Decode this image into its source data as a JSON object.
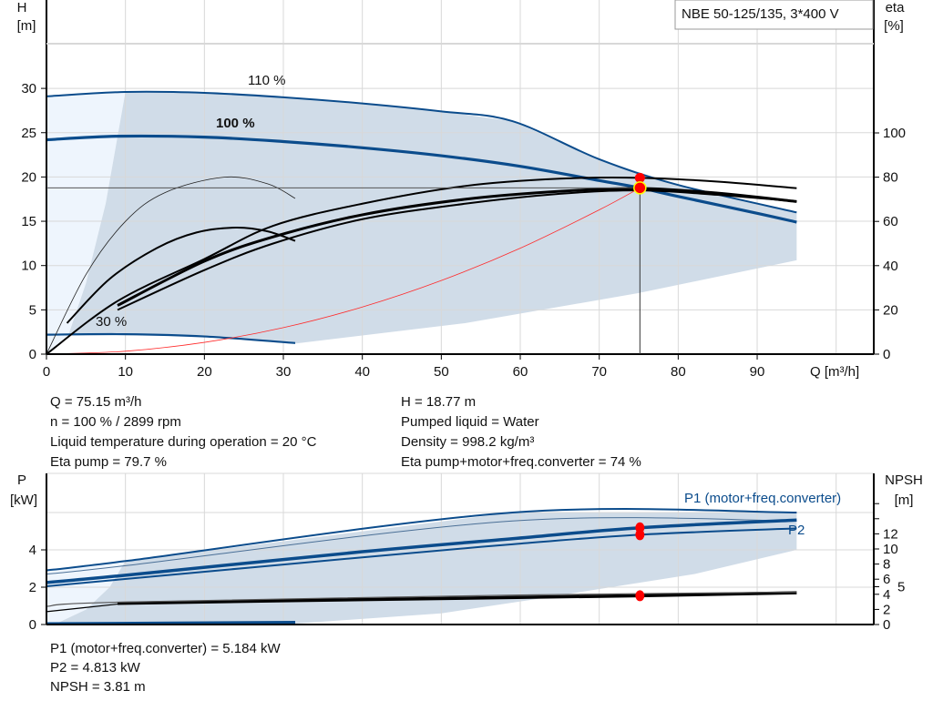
{
  "model_box": "NBE 50-125/135, 3*400 V",
  "operating_info": {
    "left": [
      "Q = 75.15 m³/h",
      "n = 100 % / 2899 rpm",
      "Liquid temperature during operation = 20 °C",
      "Eta pump = 79.7 %"
    ],
    "right": [
      "H = 18.77 m",
      "Pumped liquid = Water",
      "Density = 998.2 kg/m³",
      "Eta pump+motor+freq.converter = 74 %"
    ]
  },
  "power_info": [
    "P1 (motor+freq.converter) = 5.184 kW",
    "P2 = 4.813 kW",
    "NPSH = 3.81 m"
  ],
  "colors": {
    "curve_blue": "#0b4c8c",
    "range_fill": "#d0dce8",
    "light_fill": "#eef5fd",
    "system_curve": "#ff2a2a",
    "duty_point": "#ff0000",
    "grid": "#d8d8d8"
  },
  "chart_data": [
    {
      "type": "line",
      "xlabel": "Q [m³/h]",
      "ylabel_top": "H",
      "ylabel_unit": "[m]",
      "y2label_top": "eta",
      "y2label_unit": "[%]",
      "xlim": [
        0,
        105
      ],
      "ylim": [
        0,
        40
      ],
      "y2lim": [
        0,
        160
      ],
      "xticks": [
        0,
        10,
        20,
        30,
        40,
        50,
        60,
        70,
        80,
        90
      ],
      "yticks": [
        0,
        5,
        10,
        15,
        20,
        25,
        30
      ],
      "y2ticks": [
        0,
        20,
        40,
        60,
        80,
        100
      ],
      "grid": true,
      "speed_labels": [
        "110 %",
        "100 %",
        "30 %"
      ],
      "series": [
        {
          "name": "110 %",
          "axis": "H",
          "points": [
            [
              0,
              29.1
            ],
            [
              10,
              29.6
            ],
            [
              20,
              29.5
            ],
            [
              30,
              29.0
            ],
            [
              40,
              28.3
            ],
            [
              50,
              27.4
            ],
            [
              59,
              26.3
            ],
            [
              70,
              22.0
            ],
            [
              80,
              19.1
            ],
            [
              95,
              16.0
            ]
          ]
        },
        {
          "name": "100 %",
          "axis": "H",
          "points": [
            [
              0,
              24.2
            ],
            [
              9,
              24.6
            ],
            [
              20,
              24.5
            ],
            [
              30,
              24.0
            ],
            [
              40,
              23.3
            ],
            [
              50,
              22.4
            ],
            [
              60,
              21.2
            ],
            [
              70,
              19.6
            ],
            [
              75.15,
              18.77
            ],
            [
              80,
              17.8
            ],
            [
              90,
              15.9
            ],
            [
              95,
              14.9
            ]
          ]
        },
        {
          "name": "30 %",
          "axis": "H",
          "points": [
            [
              0,
              2.2
            ],
            [
              10,
              2.25
            ],
            [
              20,
              2.0
            ],
            [
              31.5,
              1.25
            ]
          ]
        },
        {
          "axis": "eta",
          "kind": "eta-pump",
          "points": [
            [
              0,
              0
            ],
            [
              9,
              24
            ],
            [
              20,
              43
            ],
            [
              28.7,
              58
            ],
            [
              40,
              68
            ],
            [
              53,
              76
            ],
            [
              65,
              79.3
            ],
            [
              75.15,
              79.7
            ],
            [
              85,
              78
            ],
            [
              95,
              75
            ]
          ]
        },
        {
          "axis": "eta",
          "kind": "eta-total",
          "points": [
            [
              9,
              22
            ],
            [
              20,
              42
            ],
            [
              28.7,
              53
            ],
            [
              40,
              63
            ],
            [
              53,
              70
            ],
            [
              65,
              73.6
            ],
            [
              75.15,
              74.9
            ],
            [
              85,
              72.8
            ],
            [
              95,
              69
            ]
          ]
        },
        {
          "axis": "eta",
          "kind": "eta-total-lower",
          "points": [
            [
              9,
              20
            ],
            [
              20,
              38
            ],
            [
              28.7,
              50
            ],
            [
              40,
              61
            ],
            [
              53,
              68
            ],
            [
              65,
              72.5
            ],
            [
              75.15,
              74
            ],
            [
              85,
              72
            ],
            [
              95,
              69
            ]
          ]
        },
        {
          "axis": "eta",
          "kind": "eta-pump-partload",
          "points": [
            [
              0,
              0
            ],
            [
              5,
              36
            ],
            [
              10,
              60
            ],
            [
              15,
              73
            ],
            [
              22.5,
              80
            ],
            [
              28,
              77
            ],
            [
              31.5,
              70.4
            ]
          ]
        },
        {
          "axis": "eta",
          "kind": "eta-total-partload",
          "points": [
            [
              2.6,
              14
            ],
            [
              8,
              34
            ],
            [
              14,
              48
            ],
            [
              19,
              55
            ],
            [
              24,
              57.2
            ],
            [
              28,
              55.5
            ],
            [
              31.5,
              51.2
            ]
          ]
        },
        {
          "axis": "H",
          "kind": "system-curve",
          "points": [
            [
              0,
              0
            ],
            [
              10,
              0.33
            ],
            [
              20,
              1.33
            ],
            [
              30,
              2.99
            ],
            [
              40,
              5.32
            ],
            [
              50,
              8.31
            ],
            [
              60,
              11.96
            ],
            [
              70,
              16.29
            ],
            [
              75.15,
              18.77
            ]
          ]
        }
      ],
      "operating_range": {
        "bottom": [
          [
            31.5,
            1.2
          ],
          [
            53,
            3.5
          ],
          [
            75,
            6.9
          ],
          [
            95,
            10.6
          ]
        ],
        "left_edge": [
          [
            2.8,
            2.2
          ],
          [
            5,
            8
          ],
          [
            7.5,
            17
          ],
          [
            10,
            29.6
          ]
        ]
      },
      "duty_point": {
        "Q": 75.15,
        "H": 18.77,
        "eta_pump": 79.7
      }
    },
    {
      "type": "line",
      "ylabel_top": "P",
      "ylabel_unit": "[kW]",
      "y2label_top": "NPSH",
      "y2label_unit": "[m]",
      "xlim": [
        0,
        105
      ],
      "ylim": [
        0,
        8.1
      ],
      "y2lim": [
        0,
        20
      ],
      "yticks": [
        0,
        2,
        4
      ],
      "y2ticks": [
        0,
        2,
        4,
        5,
        6,
        8,
        10,
        12
      ],
      "grid": true,
      "series_labels": [
        "P1 (motor+freq.converter)",
        "P2"
      ],
      "series": [
        {
          "axis": "P",
          "kind": "P1-110",
          "points": [
            [
              0,
              2.9
            ],
            [
              10,
              3.4
            ],
            [
              59,
              6.0
            ],
            [
              95,
              6.0
            ]
          ]
        },
        {
          "axis": "P",
          "kind": "P2-110",
          "points": [
            [
              0,
              2.7
            ],
            [
              10,
              3.15
            ],
            [
              59,
              5.55
            ],
            [
              95,
              5.55
            ]
          ]
        },
        {
          "name": "P1 (motor+freq.converter)",
          "axis": "P",
          "points": [
            [
              0,
              2.25
            ],
            [
              9,
              2.6
            ],
            [
              40,
              3.9
            ],
            [
              59,
              4.6
            ],
            [
              75.15,
              5.184
            ],
            [
              95,
              5.6
            ]
          ]
        },
        {
          "name": "P2",
          "axis": "P",
          "points": [
            [
              0,
              2.05
            ],
            [
              9,
              2.4
            ],
            [
              40,
              3.6
            ],
            [
              59,
              4.3
            ],
            [
              75.15,
              4.813
            ],
            [
              95,
              5.15
            ]
          ]
        },
        {
          "axis": "P",
          "kind": "P-30",
          "points": [
            [
              0,
              0.05
            ],
            [
              31.5,
              0.12
            ]
          ]
        },
        {
          "axis": "NPSH",
          "kind": "NPSH",
          "points": [
            [
              9,
              2.8
            ],
            [
              40,
              3.3
            ],
            [
              75.15,
              3.81
            ],
            [
              95,
              4.2
            ]
          ]
        },
        {
          "axis": "NPSH",
          "kind": "NPSH-110",
          "points": [
            [
              0,
              2.4
            ],
            [
              9,
              2.95
            ],
            [
              60,
              3.9
            ],
            [
              95,
              4.3
            ]
          ]
        },
        {
          "axis": "NPSH",
          "kind": "NPSH-low",
          "points": [
            [
              0,
              1.7
            ],
            [
              9,
              2.7
            ]
          ]
        }
      ],
      "operating_range": {
        "bottom": [
          [
            31.5,
            0.05
          ],
          [
            50,
            0.6
          ],
          [
            61,
            1.3
          ],
          [
            82,
            2.7
          ],
          [
            95,
            4.0
          ]
        ],
        "left_edge": [
          [
            1,
            0
          ],
          [
            5,
            0.8
          ],
          [
            8,
            2.0
          ],
          [
            10,
            3.4
          ]
        ]
      },
      "duty_point": {
        "P1": 5.184,
        "P2": 4.813,
        "NPSH": 3.81
      }
    }
  ]
}
